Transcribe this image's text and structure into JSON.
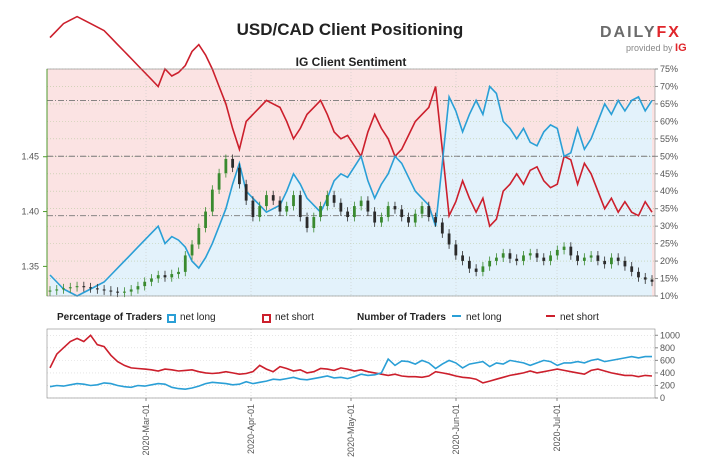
{
  "header": {
    "title": "USD/CAD Client Positioning",
    "subtitle": "IG Client Sentiment",
    "logo_text_a": "DAILY",
    "logo_text_b": "FX",
    "logo_provided": "provided by",
    "logo_ig": "IG"
  },
  "legend": {
    "pct_title": "Percentage of Traders",
    "pct_long": "net long",
    "pct_short": "net short",
    "num_title": "Number of Traders",
    "num_long": "net long",
    "num_short": "net short"
  },
  "colors": {
    "long": "#2a9fd6",
    "short": "#cc1f2c",
    "long_fill": "#e3f2fb",
    "short_fill": "#fbe3e3",
    "candle_up": "#3a8a2f",
    "candle_down": "#2b2b2b"
  },
  "chart_data": [
    {
      "type": "candlestick",
      "title": "IG Client Sentiment",
      "y_left_ticks": [
        "1.35",
        "1.40",
        "1.45"
      ],
      "y_left_lim": [
        1.323,
        1.53
      ],
      "y_right_ticks": [
        "10%",
        "15%",
        "20%",
        "25%",
        "30%",
        "35%",
        "40%",
        "45%",
        "50%",
        "55%",
        "60%",
        "65%",
        "70%",
        "75%"
      ],
      "y_right_lim": [
        10,
        75
      ],
      "x_ticks": [
        "2020-Mar-01",
        "2020-Apr-01",
        "2020-May-01",
        "2020-Jun-01",
        "2020-Jul-01"
      ],
      "x_range": [
        "2020-02-03",
        "2020-07-31"
      ],
      "price_close": [
        1.328,
        1.329,
        1.33,
        1.331,
        1.332,
        1.331,
        1.33,
        1.329,
        1.328,
        1.327,
        1.326,
        1.327,
        1.329,
        1.332,
        1.336,
        1.339,
        1.342,
        1.34,
        1.343,
        1.345,
        1.36,
        1.37,
        1.385,
        1.4,
        1.42,
        1.435,
        1.448,
        1.44,
        1.425,
        1.41,
        1.395,
        1.405,
        1.415,
        1.41,
        1.4,
        1.405,
        1.415,
        1.395,
        1.385,
        1.395,
        1.405,
        1.415,
        1.408,
        1.4,
        1.395,
        1.405,
        1.41,
        1.4,
        1.39,
        1.395,
        1.405,
        1.402,
        1.395,
        1.39,
        1.398,
        1.405,
        1.395,
        1.39,
        1.38,
        1.37,
        1.36,
        1.355,
        1.348,
        1.345,
        1.35,
        1.355,
        1.358,
        1.362,
        1.357,
        1.355,
        1.36,
        1.362,
        1.358,
        1.355,
        1.36,
        1.365,
        1.368,
        1.36,
        1.355,
        1.358,
        1.36,
        1.355,
        1.352,
        1.358,
        1.355,
        1.35,
        1.345,
        1.34,
        1.338,
        1.336
      ],
      "pct_long": [
        16,
        14,
        12,
        11,
        10,
        11,
        12,
        13,
        14,
        16,
        18,
        20,
        22,
        24,
        26,
        28,
        30,
        25,
        27,
        26,
        24,
        20,
        18,
        21,
        25,
        30,
        35,
        42,
        48,
        40,
        38,
        36,
        34,
        35,
        36,
        40,
        45,
        42,
        38,
        36,
        34,
        38,
        43,
        45,
        44,
        47,
        50,
        43,
        38,
        42,
        45,
        50,
        48,
        44,
        40,
        38,
        36,
        30,
        48,
        67,
        63,
        57,
        62,
        66,
        62,
        70,
        68,
        60,
        58,
        55,
        58,
        54,
        53,
        57,
        59,
        58,
        50,
        51,
        58,
        52,
        55,
        60,
        65,
        62,
        66,
        63,
        66,
        67,
        63,
        66
      ],
      "pct_short": [
        84,
        86,
        88,
        89,
        90,
        89,
        88,
        87,
        86,
        84,
        82,
        80,
        78,
        76,
        74,
        72,
        70,
        75,
        73,
        74,
        76,
        80,
        82,
        79,
        75,
        70,
        65,
        58,
        52,
        60,
        62,
        64,
        66,
        65,
        64,
        60,
        55,
        58,
        62,
        64,
        66,
        62,
        57,
        55,
        56,
        53,
        50,
        57,
        62,
        58,
        55,
        50,
        52,
        56,
        60,
        62,
        64,
        70,
        52,
        33,
        37,
        43,
        38,
        34,
        38,
        30,
        32,
        40,
        42,
        45,
        42,
        46,
        47,
        43,
        41,
        42,
        50,
        49,
        42,
        48,
        45,
        40,
        35,
        38,
        34,
        37,
        34,
        33,
        37,
        34
      ]
    },
    {
      "type": "line",
      "title": "Number of Traders",
      "y_ticks": [
        "0",
        "200",
        "400",
        "600",
        "800",
        "1000"
      ],
      "y_lim": [
        0,
        1100
      ],
      "series": [
        {
          "name": "net long",
          "values": [
            180,
            200,
            190,
            210,
            230,
            220,
            200,
            210,
            240,
            230,
            200,
            180,
            170,
            200,
            190,
            210,
            230,
            220,
            170,
            150,
            140,
            160,
            190,
            230,
            250,
            240,
            230,
            210,
            220,
            260,
            230,
            250,
            270,
            300,
            290,
            310,
            330,
            300,
            290,
            310,
            330,
            350,
            320,
            330,
            310,
            340,
            380,
            360,
            370,
            400,
            620,
            520,
            590,
            580,
            540,
            600,
            560,
            470,
            540,
            600,
            560,
            480,
            540,
            560,
            580,
            500,
            560,
            540,
            600,
            580,
            560,
            520,
            560,
            600,
            580,
            520,
            560,
            560,
            580,
            560,
            600,
            620,
            580,
            600,
            620,
            640,
            660,
            640,
            660,
            660
          ]
        },
        {
          "name": "net short",
          "values": [
            480,
            700,
            800,
            900,
            950,
            900,
            1000,
            850,
            820,
            680,
            580,
            520,
            480,
            470,
            460,
            450,
            430,
            460,
            450,
            430,
            440,
            450,
            420,
            400,
            390,
            400,
            420,
            400,
            380,
            390,
            420,
            520,
            460,
            420,
            500,
            470,
            430,
            450,
            400,
            420,
            470,
            460,
            440,
            480,
            460,
            430,
            450,
            420,
            400,
            380,
            360,
            380,
            350,
            340,
            340,
            330,
            350,
            420,
            400,
            380,
            350,
            330,
            320,
            300,
            240,
            270,
            300,
            330,
            360,
            380,
            400,
            430,
            400,
            420,
            440,
            460,
            440,
            420,
            400,
            380,
            440,
            460,
            430,
            400,
            380,
            360,
            360,
            340,
            360,
            350
          ]
        }
      ]
    }
  ]
}
